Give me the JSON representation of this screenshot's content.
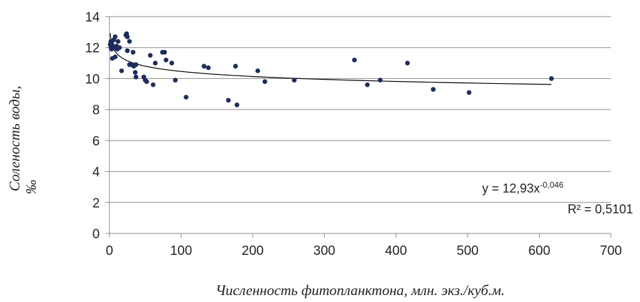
{
  "chart_data": {
    "type": "scatter",
    "xlabel": "Численность фитопланктона, млн. экз./куб.м.",
    "ylabel_line1": "Соленость воды,",
    "ylabel_line2": "‰",
    "xlim": [
      0,
      700
    ],
    "ylim": [
      0,
      14
    ],
    "x_ticks": [
      0,
      100,
      200,
      300,
      400,
      500,
      600,
      700
    ],
    "y_ticks": [
      0,
      2,
      4,
      6,
      8,
      10,
      12,
      14
    ],
    "x_tick_labels": [
      "0",
      "100",
      "200",
      "300",
      "400",
      "500",
      "600",
      "700"
    ],
    "y_tick_labels": [
      "0",
      "2",
      "4",
      "6",
      "8",
      "10",
      "12",
      "14"
    ],
    "grid": "horizontal",
    "point_color": "#1f2d5c",
    "trendline_color": "#000000",
    "points": [
      {
        "x": 1,
        "y": 12.2
      },
      {
        "x": 2,
        "y": 12.4
      },
      {
        "x": 2,
        "y": 12.0
      },
      {
        "x": 3,
        "y": 11.9
      },
      {
        "x": 3,
        "y": 12.3
      },
      {
        "x": 4,
        "y": 11.3
      },
      {
        "x": 5,
        "y": 12.1
      },
      {
        "x": 6,
        "y": 12.5
      },
      {
        "x": 7,
        "y": 12.0
      },
      {
        "x": 8,
        "y": 12.7
      },
      {
        "x": 8,
        "y": 11.4
      },
      {
        "x": 10,
        "y": 12.1
      },
      {
        "x": 11,
        "y": 11.9
      },
      {
        "x": 12,
        "y": 12.4
      },
      {
        "x": 14,
        "y": 12.0
      },
      {
        "x": 17,
        "y": 10.5
      },
      {
        "x": 23,
        "y": 12.8
      },
      {
        "x": 24,
        "y": 12.9
      },
      {
        "x": 25,
        "y": 12.7
      },
      {
        "x": 25,
        "y": 11.8
      },
      {
        "x": 28,
        "y": 12.4
      },
      {
        "x": 28,
        "y": 10.9
      },
      {
        "x": 31,
        "y": 10.9
      },
      {
        "x": 33,
        "y": 11.7
      },
      {
        "x": 34,
        "y": 10.8
      },
      {
        "x": 36,
        "y": 10.4
      },
      {
        "x": 37,
        "y": 10.9
      },
      {
        "x": 37,
        "y": 10.1
      },
      {
        "x": 48,
        "y": 10.1
      },
      {
        "x": 50,
        "y": 9.9
      },
      {
        "x": 52,
        "y": 9.8
      },
      {
        "x": 57,
        "y": 11.5
      },
      {
        "x": 61,
        "y": 9.6
      },
      {
        "x": 64,
        "y": 11.0
      },
      {
        "x": 74,
        "y": 11.7
      },
      {
        "x": 77,
        "y": 11.7
      },
      {
        "x": 79,
        "y": 11.2
      },
      {
        "x": 87,
        "y": 11.0
      },
      {
        "x": 92,
        "y": 9.9
      },
      {
        "x": 107,
        "y": 8.8
      },
      {
        "x": 132,
        "y": 10.8
      },
      {
        "x": 138,
        "y": 10.7
      },
      {
        "x": 166,
        "y": 8.6
      },
      {
        "x": 176,
        "y": 10.8
      },
      {
        "x": 178,
        "y": 8.3
      },
      {
        "x": 207,
        "y": 10.5
      },
      {
        "x": 217,
        "y": 9.8
      },
      {
        "x": 258,
        "y": 9.9
      },
      {
        "x": 342,
        "y": 11.2
      },
      {
        "x": 360,
        "y": 9.6
      },
      {
        "x": 378,
        "y": 9.9
      },
      {
        "x": 416,
        "y": 11.0
      },
      {
        "x": 452,
        "y": 9.3
      },
      {
        "x": 502,
        "y": 9.1
      },
      {
        "x": 617,
        "y": 10.0
      }
    ],
    "trendline": {
      "type": "power",
      "coefficient": 12.93,
      "exponent": -0.046,
      "x_range": [
        1,
        617
      ]
    },
    "equation": {
      "prefix": "y = 12,93x",
      "exponent_text": "-0,046",
      "r2_text": "R² = 0,5101"
    }
  }
}
